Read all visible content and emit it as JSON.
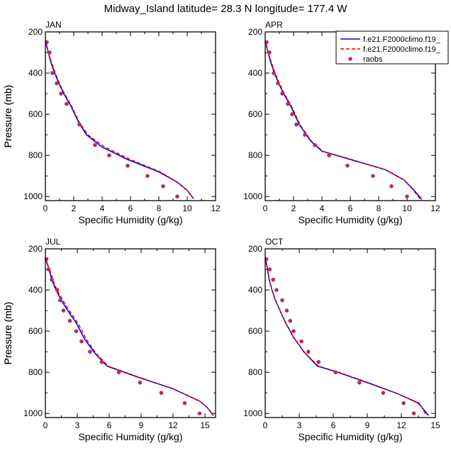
{
  "title": "Midway_Island  latitude= 28.3 N longitude= 177.4 W",
  "ylabel": "Pressure (mb)",
  "xlabel": "Specific Humidity (g/kg)",
  "colors": {
    "model1": "#0000e6",
    "model2": "#e60000",
    "obs": "#b03060"
  },
  "legend": {
    "placement": "top-right",
    "entries": [
      "f.e21.F2000climo.f19_",
      "f.e21.F2000climo.f19_",
      "raobs"
    ]
  },
  "chart_data": [
    {
      "type": "line",
      "panel": "JAN",
      "xlim": [
        0,
        12
      ],
      "ylim": [
        200,
        1020
      ],
      "yreversed": true,
      "xticks": [
        0,
        2,
        4,
        6,
        8,
        10,
        12
      ],
      "yticks": [
        200,
        400,
        600,
        800,
        1000
      ],
      "series": [
        {
          "name": "f.e21.F2000climo.f19_",
          "style": "solid",
          "color": "#0000e6",
          "x": [
            0.05,
            0.1,
            0.2,
            0.4,
            0.65,
            0.95,
            1.3,
            1.8,
            2.35,
            2.9,
            4.0,
            5.8,
            8.0,
            9.3,
            10.0,
            10.45
          ],
          "y": [
            250,
            270,
            300,
            350,
            400,
            450,
            500,
            560,
            640,
            700,
            760,
            820,
            880,
            930,
            970,
            1010
          ]
        },
        {
          "name": "f.e21.F2000climo.f19_",
          "style": "dashed",
          "color": "#e60000",
          "x": [
            0.05,
            0.1,
            0.2,
            0.45,
            0.7,
            1.0,
            1.35,
            1.85,
            2.4,
            3.0,
            4.2,
            6.0,
            8.1,
            9.3,
            10.0,
            10.45
          ],
          "y": [
            250,
            270,
            300,
            350,
            400,
            450,
            500,
            560,
            640,
            700,
            760,
            820,
            880,
            930,
            970,
            1010
          ]
        },
        {
          "name": "raobs",
          "style": "points",
          "color": "#b03060",
          "x": [
            0.1,
            0.3,
            0.5,
            0.8,
            1.1,
            1.5,
            2.4,
            3.5,
            4.5,
            5.8,
            7.2,
            8.3,
            9.3
          ],
          "y": [
            250,
            300,
            400,
            450,
            500,
            550,
            650,
            750,
            800,
            850,
            900,
            950,
            1000
          ]
        }
      ]
    },
    {
      "type": "line",
      "panel": "APR",
      "xlim": [
        0,
        12
      ],
      "ylim": [
        200,
        1020
      ],
      "yreversed": true,
      "xticks": [
        0,
        2,
        4,
        6,
        8,
        10,
        12
      ],
      "yticks": [
        200,
        400,
        600,
        800,
        1000
      ],
      "series": [
        {
          "name": "f.e21.F2000climo.f19_",
          "style": "solid",
          "color": "#0000e6",
          "x": [
            0.05,
            0.1,
            0.2,
            0.4,
            0.65,
            0.95,
            1.3,
            1.8,
            2.4,
            3.2,
            4.0,
            6.0,
            8.5,
            9.8,
            10.5,
            11.0
          ],
          "y": [
            250,
            270,
            300,
            350,
            400,
            450,
            500,
            560,
            650,
            730,
            780,
            820,
            870,
            920,
            970,
            1010
          ]
        },
        {
          "name": "f.e21.F2000climo.f19_",
          "style": "dashed",
          "color": "#e60000",
          "x": [
            0.05,
            0.1,
            0.2,
            0.45,
            0.7,
            1.0,
            1.35,
            1.85,
            2.45,
            3.25,
            4.05,
            6.1,
            8.5,
            9.8,
            10.45,
            10.9
          ],
          "y": [
            250,
            270,
            300,
            350,
            400,
            450,
            500,
            560,
            650,
            730,
            780,
            820,
            870,
            920,
            970,
            1010
          ]
        },
        {
          "name": "raobs",
          "style": "points",
          "color": "#b03060",
          "x": [
            0.1,
            0.3,
            0.6,
            0.9,
            1.2,
            1.6,
            1.9,
            2.2,
            2.8,
            3.5,
            4.5,
            5.8,
            7.6,
            8.9,
            10.0
          ],
          "y": [
            250,
            300,
            400,
            450,
            500,
            550,
            600,
            650,
            700,
            750,
            800,
            850,
            900,
            950,
            1000
          ]
        }
      ]
    },
    {
      "type": "line",
      "panel": "JUL",
      "xlim": [
        0,
        16
      ],
      "ylim": [
        200,
        1020
      ],
      "yreversed": true,
      "xticks": [
        0,
        3,
        6,
        9,
        12,
        15
      ],
      "yticks": [
        200,
        400,
        600,
        800,
        1000
      ],
      "series": [
        {
          "name": "f.e21.F2000climo.f19_",
          "style": "solid",
          "color": "#0000e6",
          "x": [
            0.05,
            0.15,
            0.35,
            0.6,
            1.0,
            1.5,
            2.1,
            2.9,
            3.7,
            4.7,
            5.8,
            8.5,
            12.0,
            14.5,
            15.2,
            15.8
          ],
          "y": [
            250,
            270,
            300,
            350,
            400,
            450,
            500,
            560,
            640,
            710,
            770,
            820,
            880,
            940,
            970,
            1010
          ]
        },
        {
          "name": "f.e21.F2000climo.f19_",
          "style": "dashed",
          "color": "#e60000",
          "x": [
            0.05,
            0.15,
            0.4,
            0.7,
            1.1,
            1.65,
            2.25,
            3.05,
            3.85,
            4.8,
            5.9,
            8.6,
            12.0,
            14.5,
            15.2,
            15.8
          ],
          "y": [
            250,
            270,
            300,
            350,
            400,
            450,
            500,
            560,
            640,
            710,
            770,
            820,
            880,
            940,
            970,
            1010
          ]
        },
        {
          "name": "raobs",
          "style": "points",
          "color": "#b03060",
          "x": [
            0.1,
            0.3,
            0.6,
            1.1,
            1.4,
            1.7,
            2.3,
            2.9,
            3.4,
            4.2,
            5.3,
            6.9,
            8.9,
            10.9,
            13.1,
            14.5
          ],
          "y": [
            250,
            300,
            350,
            400,
            450,
            500,
            550,
            600,
            650,
            700,
            750,
            800,
            850,
            900,
            950,
            1000
          ]
        }
      ]
    },
    {
      "type": "line",
      "panel": "OCT",
      "xlim": [
        0,
        15
      ],
      "ylim": [
        200,
        1020
      ],
      "yreversed": true,
      "xticks": [
        0,
        3,
        6,
        9,
        12,
        15
      ],
      "yticks": [
        200,
        400,
        600,
        800,
        1000
      ],
      "series": [
        {
          "name": "f.e21.F2000climo.f19_",
          "style": "solid",
          "color": "#0000e6",
          "x": [
            0.05,
            0.1,
            0.2,
            0.35,
            0.6,
            0.9,
            1.3,
            1.8,
            2.5,
            3.4,
            4.6,
            6.4,
            9.0,
            11.5,
            13.5,
            14.4
          ],
          "y": [
            250,
            270,
            300,
            350,
            400,
            450,
            500,
            560,
            630,
            700,
            770,
            800,
            850,
            900,
            950,
            1010
          ]
        },
        {
          "name": "f.e21.F2000climo.f19_",
          "style": "dashed",
          "color": "#e60000",
          "x": [
            0.05,
            0.1,
            0.2,
            0.35,
            0.6,
            0.9,
            1.3,
            1.8,
            2.5,
            3.4,
            4.7,
            6.5,
            9.1,
            11.5,
            13.6,
            14.2
          ],
          "y": [
            250,
            270,
            300,
            350,
            400,
            450,
            500,
            560,
            630,
            700,
            770,
            800,
            850,
            900,
            950,
            1010
          ]
        },
        {
          "name": "raobs",
          "style": "points",
          "color": "#b03060",
          "x": [
            0.1,
            0.4,
            0.7,
            1.0,
            1.5,
            1.9,
            2.2,
            2.5,
            3.2,
            3.8,
            4.7,
            6.2,
            8.3,
            10.4,
            12.2,
            13.1
          ],
          "y": [
            250,
            300,
            350,
            400,
            450,
            500,
            550,
            600,
            650,
            700,
            750,
            800,
            850,
            900,
            950,
            1000
          ]
        }
      ]
    }
  ]
}
